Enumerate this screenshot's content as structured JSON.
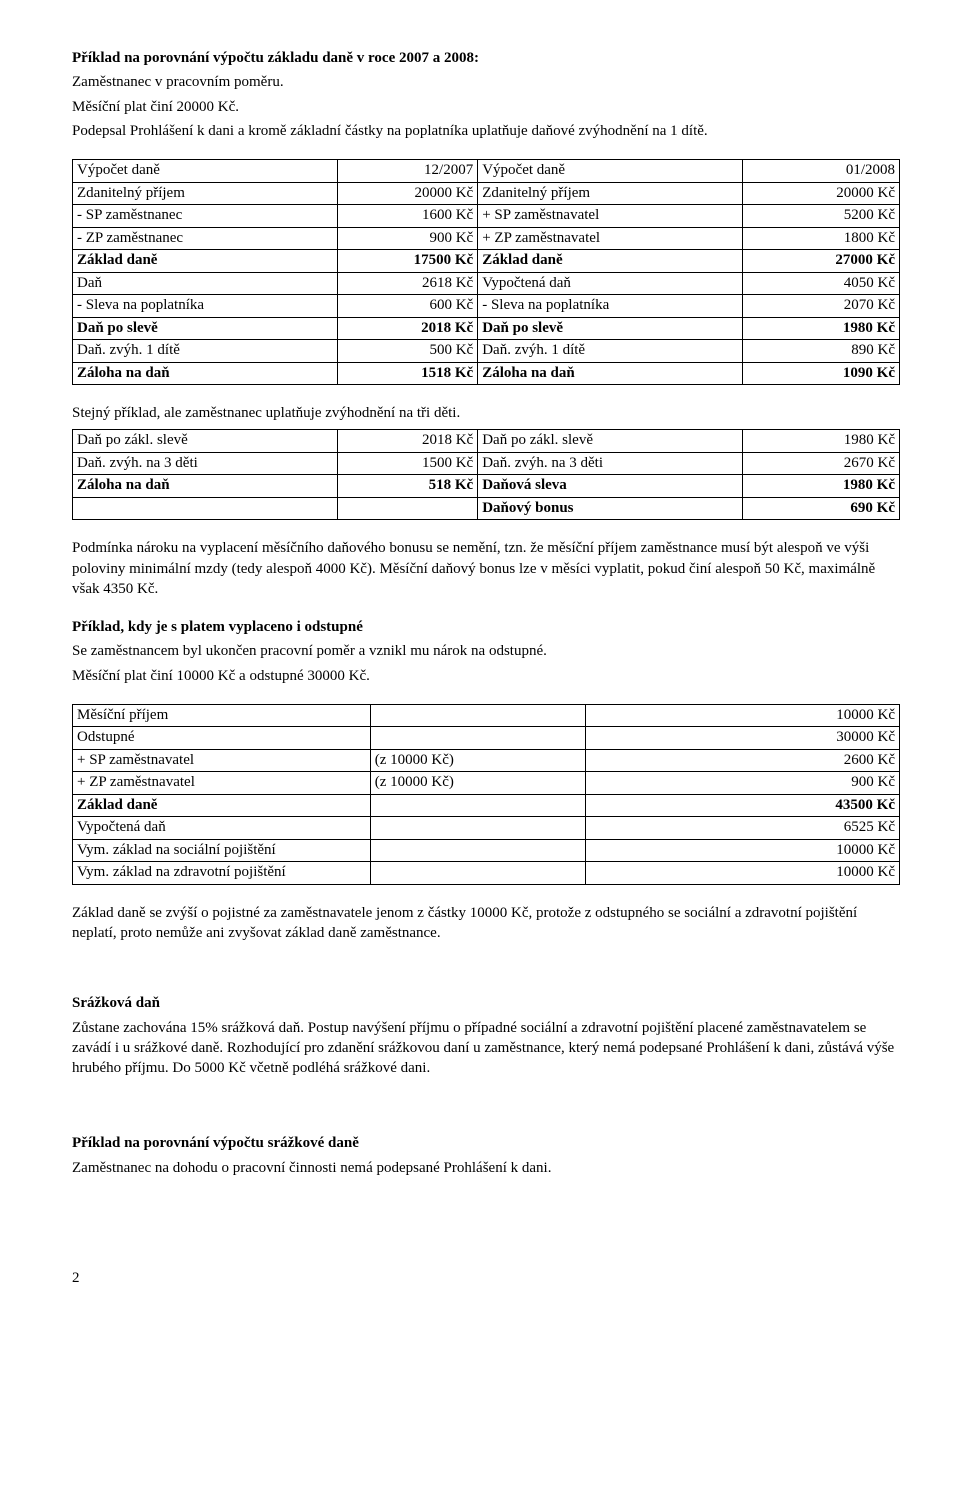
{
  "heading1": {
    "title": "Příklad na porovnání výpočtu základu daně v roce 2007 a 2008:",
    "line2": "Zaměstnanec v pracovním poměru.",
    "line3": "Měsíční plat činí 20000 Kč.",
    "line4": "Podepsal Prohlášení k dani a kromě základní částky na poplatníka uplatňuje daňové zvýhodnění na 1 dítě."
  },
  "table1": {
    "rows": [
      {
        "l1": "Výpočet daně",
        "l2": "12/2007",
        "r1": "Výpočet daně",
        "r2": "01/2008",
        "bold": false
      },
      {
        "l1": "Zdanitelný příjem",
        "l2": "20000 Kč",
        "r1": "Zdanitelný příjem",
        "r2": "20000 Kč",
        "bold": false
      },
      {
        "l1": "- SP zaměstnanec",
        "l2": "1600 Kč",
        "r1": "+ SP zaměstnavatel",
        "r2": "5200 Kč",
        "bold": false
      },
      {
        "l1": "- ZP zaměstnanec",
        "l2": "900 Kč",
        "r1": "+ ZP zaměstnavatel",
        "r2": "1800 Kč",
        "bold": false
      },
      {
        "l1": "Základ daně",
        "l2": "17500 Kč",
        "r1": "Základ daně",
        "r2": "27000 Kč",
        "bold": true
      },
      {
        "l1": "Daň",
        "l2": "2618 Kč",
        "r1": "Vypočtená daň",
        "r2": "4050 Kč",
        "bold": false
      },
      {
        "l1": "- Sleva na poplatníka",
        "l2": "600 Kč",
        "r1": "- Sleva na poplatníka",
        "r2": "2070 Kč",
        "bold": false
      },
      {
        "l1": "Daň po slevě",
        "l2": "2018 Kč",
        "r1": "Daň po slevě",
        "r2": "1980 Kč",
        "bold": true
      },
      {
        "l1": "Daň. zvýh. 1 dítě",
        "l2": "500 Kč",
        "r1": "Daň. zvýh. 1 dítě",
        "r2": "890 Kč",
        "bold": false
      },
      {
        "l1": "Záloha na daň",
        "l2": "1518 Kč",
        "r1": "Záloha na daň",
        "r2": "1090 Kč",
        "bold": true
      }
    ]
  },
  "mid1": "Stejný příklad, ale zaměstnanec uplatňuje zvýhodnění na tři děti.",
  "table1b": {
    "rows": [
      {
        "l1": "Daň po zákl. slevě",
        "l2": "2018 Kč",
        "r1": "Daň po zákl. slevě",
        "r2": "1980 Kč",
        "bold": false
      },
      {
        "l1": "Daň. zvýh. na 3 děti",
        "l2": "1500 Kč",
        "r1": "Daň. zvýh. na 3 děti",
        "r2": "2670 Kč",
        "bold": false
      },
      {
        "l1": "Záloha na daň",
        "l2": "518 Kč",
        "r1": "Daňová sleva",
        "r2": "1980 Kč",
        "bold": true
      },
      {
        "l1": "",
        "l2": "",
        "r1": "Daňový bonus",
        "r2": "690 Kč",
        "bold": true,
        "right_only_bold": true
      }
    ]
  },
  "para_bonus": "Podmínka nároku na vyplacení měsíčního daňového bonusu se nemění, tzn. že měsíční příjem zaměstnance musí být alespoň ve výši poloviny minimální mzdy (tedy alespoň 4000 Kč). Měsíční daňový bonus lze v měsíci vyplatit, pokud činí alespoň 50 Kč, maximálně však 4350 Kč.",
  "heading2": {
    "title": "Příklad, kdy je s platem vyplaceno i odstupné",
    "line2": "Se zaměstnancem byl ukončen pracovní poměr a vznikl mu nárok na odstupné.",
    "line3": "Měsíční plat činí 10000 Kč a odstupné 30000 Kč."
  },
  "table2": {
    "rows": [
      {
        "a": "Měsíční příjem",
        "b": "",
        "c": "10000 Kč",
        "bold": false
      },
      {
        "a": "Odstupné",
        "b": "",
        "c": "30000 Kč",
        "bold": false
      },
      {
        "a": "+ SP zaměstnavatel",
        "b": "(z 10000 Kč)",
        "c": "2600 Kč",
        "bold": false
      },
      {
        "a": "+ ZP zaměstnavatel",
        "b": "(z 10000 Kč)",
        "c": "900 Kč",
        "bold": false
      },
      {
        "a": "Základ daně",
        "b": "",
        "c": "43500 Kč",
        "bold": true
      },
      {
        "a": "Vypočtená daň",
        "b": "",
        "c": "6525 Kč",
        "bold": false
      },
      {
        "a": "Vym. základ na sociální pojištění",
        "b": "",
        "c": "10000 Kč",
        "bold": false
      },
      {
        "a": "Vym. základ na zdravotní pojištění",
        "b": "",
        "c": "10000 Kč",
        "bold": false
      }
    ]
  },
  "para_odstupne": "Základ daně se zvýší o pojistné za zaměstnavatele jenom z částky 10000 Kč, protože z odstupného se sociální a zdravotní pojištění neplatí, proto nemůže ani zvyšovat základ daně zaměstnance.",
  "heading3": {
    "title": "Srážková daň",
    "body": "Zůstane zachována 15% srážková daň. Postup navýšení příjmu o případné sociální a zdravotní pojištění placené zaměstnavatelem se zavádí i u srážkové daně. Rozhodující pro zdanění srážkovou daní u zaměstnance, který nemá podepsané Prohlášení k dani, zůstává výše hrubého příjmu. Do 5000 Kč včetně podléhá srážkové dani."
  },
  "heading4": {
    "title": "Příklad na porovnání výpočtu srážkové daně",
    "line2": "Zaměstnanec na dohodu o pracovní činnosti nemá podepsané Prohlášení k dani."
  },
  "pagenum": "2"
}
